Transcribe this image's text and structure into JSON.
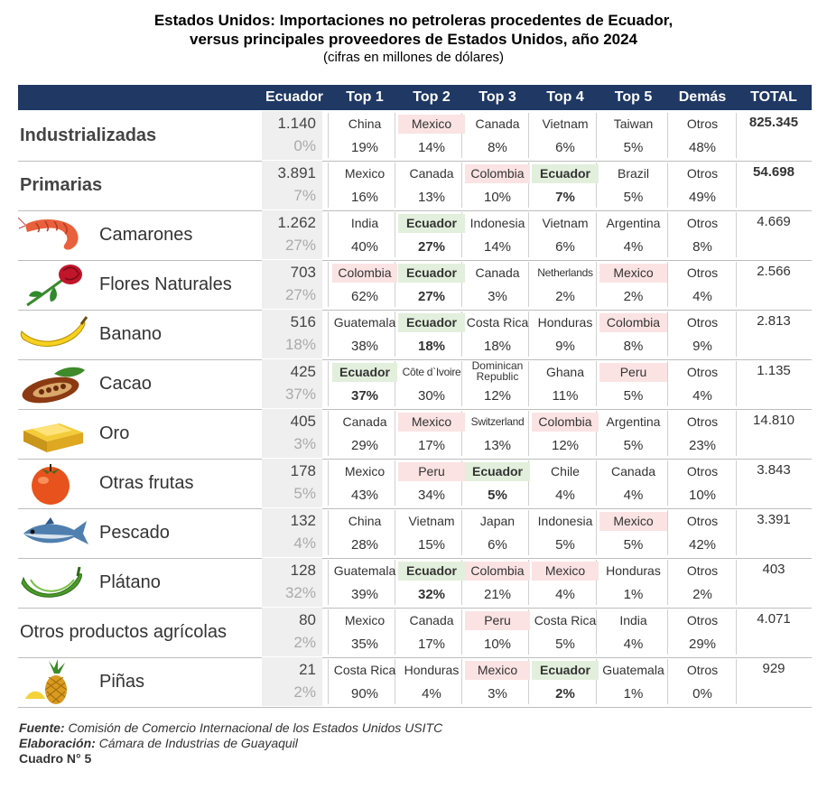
{
  "title": {
    "line1": "Estados Unidos: Importaciones no petroleras procedentes de Ecuador,",
    "line2": "versus principales proveedores de Estados Unidos, año 2024",
    "line3": "(cifras en millones de dólares)"
  },
  "headers": [
    "Ecuador",
    "Top 1",
    "Top 2",
    "Top 3",
    "Top 4",
    "Top 5",
    "Demás",
    "TOTAL"
  ],
  "rows": [
    {
      "label": "Industrializadas",
      "style": "bold",
      "icon": "",
      "ecuador_value": "1.140",
      "ecuador_share": "0%",
      "tops": [
        {
          "country": "China",
          "pct": "19%",
          "hl": ""
        },
        {
          "country": "Mexico",
          "pct": "14%",
          "hl": "red"
        },
        {
          "country": "Canada",
          "pct": "8%",
          "hl": ""
        },
        {
          "country": "Vietnam",
          "pct": "6%",
          "hl": ""
        },
        {
          "country": "Taiwan",
          "pct": "5%",
          "hl": ""
        }
      ],
      "others": {
        "label": "Otros",
        "pct": "48%"
      },
      "total": "825.345",
      "total_bold": true
    },
    {
      "label": "Primarias",
      "style": "bold",
      "icon": "",
      "ecuador_value": "3.891",
      "ecuador_share": "7%",
      "tops": [
        {
          "country": "Mexico",
          "pct": "16%",
          "hl": ""
        },
        {
          "country": "Canada",
          "pct": "13%",
          "hl": ""
        },
        {
          "country": "Colombia",
          "pct": "10%",
          "hl": "red"
        },
        {
          "country": "Ecuador",
          "pct": "7%",
          "hl": "green",
          "ecuador": true
        },
        {
          "country": "Brazil",
          "pct": "5%",
          "hl": ""
        }
      ],
      "others": {
        "label": "Otros",
        "pct": "49%"
      },
      "total": "54.698",
      "total_bold": true
    },
    {
      "label": "Camarones",
      "style": "product",
      "icon": "shrimp-icon",
      "ecuador_value": "1.262",
      "ecuador_share": "27%",
      "tops": [
        {
          "country": "India",
          "pct": "40%",
          "hl": ""
        },
        {
          "country": "Ecuador",
          "pct": "27%",
          "hl": "green",
          "ecuador": true
        },
        {
          "country": "Indonesia",
          "pct": "14%",
          "hl": ""
        },
        {
          "country": "Vietnam",
          "pct": "6%",
          "hl": ""
        },
        {
          "country": "Argentina",
          "pct": "4%",
          "hl": ""
        }
      ],
      "others": {
        "label": "Otros",
        "pct": "8%"
      },
      "total": "4.669",
      "total_bold": false
    },
    {
      "label": "Flores Naturales",
      "style": "product",
      "icon": "rose-icon",
      "ecuador_value": "703",
      "ecuador_share": "27%",
      "tops": [
        {
          "country": "Colombia",
          "pct": "62%",
          "hl": "red"
        },
        {
          "country": "Ecuador",
          "pct": "27%",
          "hl": "green",
          "ecuador": true
        },
        {
          "country": "Canada",
          "pct": "3%",
          "hl": ""
        },
        {
          "country": "Netherlands",
          "pct": "2%",
          "hl": "",
          "small": true
        },
        {
          "country": "Mexico",
          "pct": "2%",
          "hl": "red"
        }
      ],
      "others": {
        "label": "Otros",
        "pct": "4%"
      },
      "total": "2.566",
      "total_bold": false
    },
    {
      "label": "Banano",
      "style": "product",
      "icon": "banana-icon",
      "ecuador_value": "516",
      "ecuador_share": "18%",
      "tops": [
        {
          "country": "Guatemala",
          "pct": "38%",
          "hl": ""
        },
        {
          "country": "Ecuador",
          "pct": "18%",
          "hl": "green",
          "ecuador": true
        },
        {
          "country": "Costa Rica",
          "pct": "18%",
          "hl": ""
        },
        {
          "country": "Honduras",
          "pct": "9%",
          "hl": ""
        },
        {
          "country": "Colombia",
          "pct": "8%",
          "hl": "red"
        }
      ],
      "others": {
        "label": "Otros",
        "pct": "9%"
      },
      "total": "2.813",
      "total_bold": false
    },
    {
      "label": "Cacao",
      "style": "product",
      "icon": "cacao-icon",
      "ecuador_value": "425",
      "ecuador_share": "37%",
      "tops": [
        {
          "country": "Ecuador",
          "pct": "37%",
          "hl": "green",
          "ecuador": true
        },
        {
          "country": "Côte d`Ivoire",
          "pct": "30%",
          "hl": "",
          "small": true
        },
        {
          "country": "Dominican Republic",
          "pct": "12%",
          "hl": "",
          "twoline": [
            "Dominican",
            "Republic"
          ]
        },
        {
          "country": "Ghana",
          "pct": "11%",
          "hl": ""
        },
        {
          "country": "Peru",
          "pct": "5%",
          "hl": "red"
        }
      ],
      "others": {
        "label": "Otros",
        "pct": "4%"
      },
      "total": "1.135",
      "total_bold": false
    },
    {
      "label": "Oro",
      "style": "product",
      "icon": "gold-bar-icon",
      "ecuador_value": "405",
      "ecuador_share": "3%",
      "tops": [
        {
          "country": "Canada",
          "pct": "29%",
          "hl": ""
        },
        {
          "country": "Mexico",
          "pct": "17%",
          "hl": "red"
        },
        {
          "country": "Switzerland",
          "pct": "13%",
          "hl": "",
          "small": true
        },
        {
          "country": "Colombia",
          "pct": "12%",
          "hl": "red"
        },
        {
          "country": "Argentina",
          "pct": "5%",
          "hl": ""
        }
      ],
      "others": {
        "label": "Otros",
        "pct": "23%"
      },
      "total": "14.810",
      "total_bold": false
    },
    {
      "label": "Otras frutas",
      "style": "product",
      "icon": "persimmon-icon",
      "ecuador_value": "178",
      "ecuador_share": "5%",
      "tops": [
        {
          "country": "Mexico",
          "pct": "43%",
          "hl": ""
        },
        {
          "country": "Peru",
          "pct": "34%",
          "hl": "red"
        },
        {
          "country": "Ecuador",
          "pct": "5%",
          "hl": "green",
          "ecuador": true
        },
        {
          "country": "Chile",
          "pct": "4%",
          "hl": ""
        },
        {
          "country": "Canada",
          "pct": "4%",
          "hl": ""
        }
      ],
      "others": {
        "label": "Otros",
        "pct": "10%"
      },
      "total": "3.843",
      "total_bold": false
    },
    {
      "label": "Pescado",
      "style": "product",
      "icon": "fish-icon",
      "ecuador_value": "132",
      "ecuador_share": "4%",
      "tops": [
        {
          "country": "China",
          "pct": "28%",
          "hl": ""
        },
        {
          "country": "Vietnam",
          "pct": "15%",
          "hl": ""
        },
        {
          "country": "Japan",
          "pct": "6%",
          "hl": ""
        },
        {
          "country": "Indonesia",
          "pct": "5%",
          "hl": ""
        },
        {
          "country": "Mexico",
          "pct": "5%",
          "hl": "red"
        }
      ],
      "others": {
        "label": "Otros",
        "pct": "42%"
      },
      "total": "3.391",
      "total_bold": false
    },
    {
      "label": "Plátano",
      "style": "product",
      "icon": "plantain-icon",
      "ecuador_value": "128",
      "ecuador_share": "32%",
      "tops": [
        {
          "country": "Guatemala",
          "pct": "39%",
          "hl": ""
        },
        {
          "country": "Ecuador",
          "pct": "32%",
          "hl": "green",
          "ecuador": true
        },
        {
          "country": "Colombia",
          "pct": "21%",
          "hl": "red"
        },
        {
          "country": "Mexico",
          "pct": "4%",
          "hl": "red"
        },
        {
          "country": "Honduras",
          "pct": "1%",
          "hl": ""
        }
      ],
      "others": {
        "label": "Otros",
        "pct": "2%"
      },
      "total": "403",
      "total_bold": false
    },
    {
      "label": "Otros productos agrícolas",
      "style": "plain",
      "icon": "",
      "ecuador_value": "80",
      "ecuador_share": "2%",
      "tops": [
        {
          "country": "Mexico",
          "pct": "35%",
          "hl": ""
        },
        {
          "country": "Canada",
          "pct": "17%",
          "hl": ""
        },
        {
          "country": "Peru",
          "pct": "10%",
          "hl": "red"
        },
        {
          "country": "Costa Rica",
          "pct": "5%",
          "hl": ""
        },
        {
          "country": "India",
          "pct": "4%",
          "hl": ""
        }
      ],
      "others": {
        "label": "Otros",
        "pct": "29%"
      },
      "total": "4.071",
      "total_bold": false
    },
    {
      "label": "Piñas",
      "style": "product",
      "icon": "pineapple-icon",
      "ecuador_value": "21",
      "ecuador_share": "2%",
      "tops": [
        {
          "country": "Costa Rica",
          "pct": "90%",
          "hl": ""
        },
        {
          "country": "Honduras",
          "pct": "4%",
          "hl": ""
        },
        {
          "country": "Mexico",
          "pct": "3%",
          "hl": "red"
        },
        {
          "country": "Ecuador",
          "pct": "2%",
          "hl": "green",
          "ecuador": true
        },
        {
          "country": "Guatemala",
          "pct": "1%",
          "hl": ""
        }
      ],
      "others": {
        "label": "Otros",
        "pct": "0%"
      },
      "total": "929",
      "total_bold": false
    }
  ],
  "colors": {
    "header_bg": "#1f3864",
    "highlight_red": "#fbe3e3",
    "highlight_green": "#e2efdc",
    "ecuador_col_bg": "#efefef"
  },
  "footer": {
    "source_label": "Fuente:",
    "source_text": "Comisión de Comercio Internacional de los Estados Unidos USITC",
    "made_label": "Elaboración:",
    "made_text": "Cámara de Industrias de Guayaquil",
    "table_id": "Cuadro N° 5"
  }
}
